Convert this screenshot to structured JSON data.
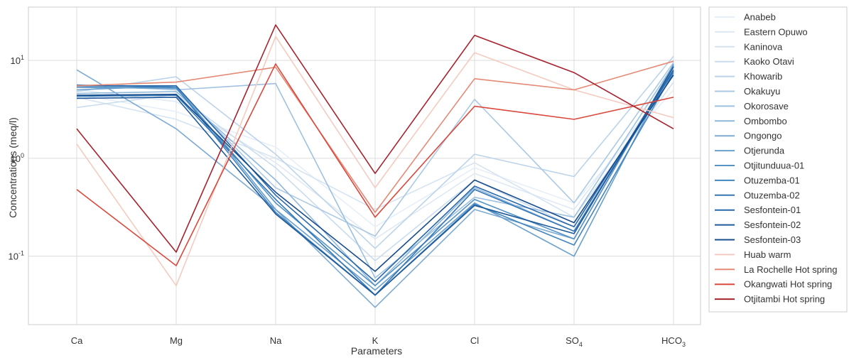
{
  "chart_data": {
    "type": "line",
    "title": "",
    "xlabel": "Parameters",
    "ylabel": "Concentrations (meq/l)",
    "yscale": "log",
    "ylim": [
      0.02,
      35
    ],
    "grid": true,
    "legend_position": "right-outside",
    "categories": [
      "Ca",
      "Mg",
      "Na",
      "K",
      "Cl",
      "SO4",
      "HCO3"
    ],
    "category_labels": [
      {
        "base": "Ca",
        "sub": ""
      },
      {
        "base": "Mg",
        "sub": ""
      },
      {
        "base": "Na",
        "sub": ""
      },
      {
        "base": "K",
        "sub": ""
      },
      {
        "base": "Cl",
        "sub": ""
      },
      {
        "base": "SO",
        "sub": "4"
      },
      {
        "base": "HCO",
        "sub": "3"
      }
    ],
    "y_ticks": [
      {
        "value": 0.1,
        "base": "10",
        "exp": "-1"
      },
      {
        "value": 1,
        "base": "10",
        "exp": "0"
      },
      {
        "value": 10,
        "base": "10",
        "exp": "1"
      }
    ],
    "series": [
      {
        "name": "Anabeb",
        "color": "#e6eef7",
        "values": [
          4.5,
          3.0,
          1.3,
          0.2,
          0.8,
          0.35,
          5.0
        ]
      },
      {
        "name": "Eastern Opuwo",
        "color": "#dfe9f4",
        "values": [
          5.0,
          3.8,
          0.9,
          0.15,
          0.7,
          0.3,
          7.0
        ]
      },
      {
        "name": "Kaninova",
        "color": "#d6e4f1",
        "values": [
          4.2,
          2.5,
          1.0,
          0.3,
          0.9,
          0.25,
          6.0
        ]
      },
      {
        "name": "Kaoko Otavi",
        "color": "#cadcee",
        "values": [
          3.3,
          4.5,
          0.8,
          0.09,
          0.6,
          0.2,
          8.0
        ]
      },
      {
        "name": "Khowarib",
        "color": "#bcd4ea",
        "values": [
          4.8,
          6.8,
          1.1,
          0.12,
          1.1,
          0.65,
          11.0
        ]
      },
      {
        "name": "Okakuyu",
        "color": "#acc9e4",
        "values": [
          5.4,
          5.1,
          0.5,
          0.16,
          4.0,
          0.35,
          9.5
        ]
      },
      {
        "name": "Okorosave",
        "color": "#9ec1e0",
        "values": [
          5.6,
          5.0,
          5.8,
          0.06,
          0.4,
          0.25,
          9.0
        ]
      },
      {
        "name": "Ombombo",
        "color": "#8fb7da",
        "values": [
          4.6,
          4.8,
          0.6,
          0.05,
          0.5,
          0.18,
          8.5
        ]
      },
      {
        "name": "Ongongo",
        "color": "#7eabd3",
        "values": [
          8.0,
          2.0,
          0.3,
          0.03,
          0.3,
          0.15,
          9.0
        ]
      },
      {
        "name": "Otjerunda",
        "color": "#6aa0cd",
        "values": [
          5.0,
          5.5,
          0.3,
          0.045,
          0.35,
          0.1,
          9.2
        ]
      },
      {
        "name": "Otjitunduua-01",
        "color": "#5693c5",
        "values": [
          5.3,
          5.2,
          0.35,
          0.05,
          0.38,
          0.15,
          8.8
        ]
      },
      {
        "name": "Otuzemba-01",
        "color": "#4485be",
        "values": [
          5.6,
          5.3,
          0.28,
          0.04,
          0.34,
          0.13,
          7.5
        ]
      },
      {
        "name": "Otuzemba-02",
        "color": "#3577b5",
        "values": [
          4.3,
          4.4,
          0.38,
          0.04,
          0.48,
          0.18,
          7.8
        ]
      },
      {
        "name": "Sesfontein-01",
        "color": "#2868aa",
        "values": [
          5.5,
          5.5,
          0.42,
          0.055,
          0.52,
          0.2,
          8.0
        ]
      },
      {
        "name": "Sesfontein-02",
        "color": "#1f5a9c",
        "values": [
          4.1,
          4.2,
          0.27,
          0.04,
          0.33,
          0.17,
          8.6
        ]
      },
      {
        "name": "Sesfontein-03",
        "color": "#184c8c",
        "values": [
          4.4,
          4.5,
          0.45,
          0.07,
          0.6,
          0.22,
          7.1
        ]
      },
      {
        "name": "Huab warm",
        "color": "#f4cbc0",
        "values": [
          1.4,
          0.05,
          17.5,
          0.5,
          12.0,
          5.0,
          2.6
        ]
      },
      {
        "name": "La Rochelle Hot spring",
        "color": "#e58a76",
        "values": [
          5.5,
          6.0,
          8.5,
          0.28,
          6.5,
          5.0,
          9.8
        ]
      },
      {
        "name": "Okangwati Hot spring",
        "color": "#d9493d",
        "values": [
          0.48,
          0.08,
          9.2,
          0.25,
          3.4,
          2.5,
          4.2
        ]
      },
      {
        "name": "Otjitambi Hot spring",
        "color": "#a5232e",
        "values": [
          2.0,
          0.11,
          23.0,
          0.7,
          18.0,
          7.5,
          2.0
        ]
      }
    ]
  }
}
